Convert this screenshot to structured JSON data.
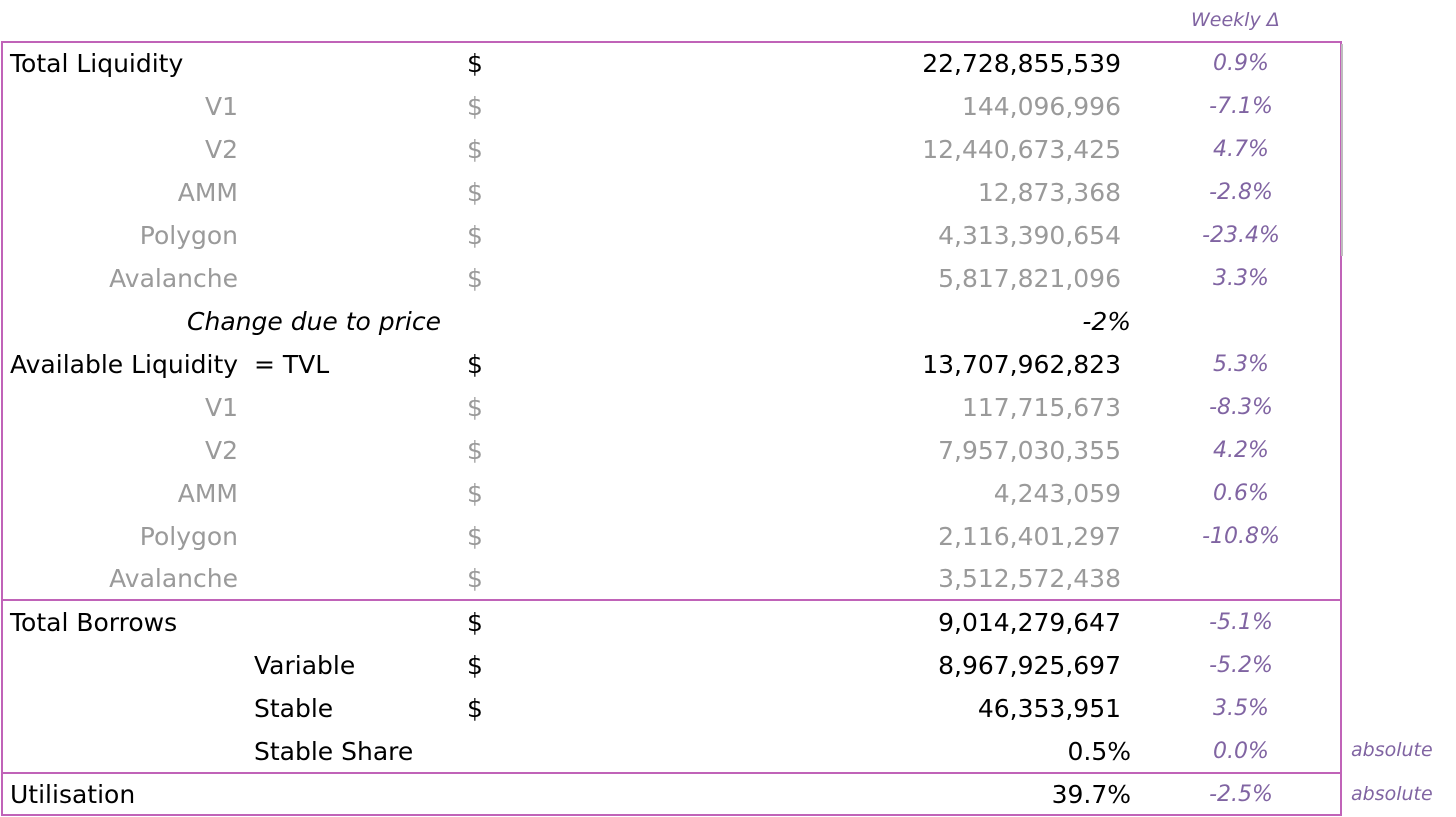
{
  "header": {
    "weekly_delta": "Weekly Δ"
  },
  "notes": {
    "absolute": "absolute"
  },
  "colors": {
    "border": "#c063b8",
    "delta": "#8064a2",
    "sub_text": "#9a9a9a"
  },
  "total_liquidity": {
    "label": "Total Liquidity",
    "currency": "$",
    "value": "22,728,855,539",
    "delta": "0.9%",
    "rows": [
      {
        "label": "V1",
        "currency": "$",
        "value": "144,096,996",
        "delta": "-7.1%"
      },
      {
        "label": "V2",
        "currency": "$",
        "value": "12,440,673,425",
        "delta": "4.7%"
      },
      {
        "label": "AMM",
        "currency": "$",
        "value": "12,873,368",
        "delta": "-2.8%"
      },
      {
        "label": "Polygon",
        "currency": "$",
        "value": "4,313,390,654",
        "delta": "-23.4%"
      },
      {
        "label": "Avalanche",
        "currency": "$",
        "value": "5,817,821,096",
        "delta": "3.3%"
      }
    ]
  },
  "price_change": {
    "label": "Change due to price",
    "value": "-2%"
  },
  "available_liquidity": {
    "label": "Available Liquidity  = TVL",
    "currency": "$",
    "value": "13,707,962,823",
    "delta": "5.3%",
    "rows": [
      {
        "label": "V1",
        "currency": "$",
        "value": "117,715,673",
        "delta": "-8.3%"
      },
      {
        "label": "V2",
        "currency": "$",
        "value": "7,957,030,355",
        "delta": "4.2%"
      },
      {
        "label": "AMM",
        "currency": "$",
        "value": "4,243,059",
        "delta": "0.6%"
      },
      {
        "label": "Polygon",
        "currency": "$",
        "value": "2,116,401,297",
        "delta": "-10.8%"
      },
      {
        "label": "Avalanche",
        "currency": "$",
        "value": "3,512,572,438",
        "delta": ""
      }
    ]
  },
  "total_borrows": {
    "label": "Total Borrows",
    "currency": "$",
    "value": "9,014,279,647",
    "delta": "-5.1%",
    "rows": [
      {
        "label": "Variable",
        "currency": "$",
        "value": "8,967,925,697",
        "delta": "-5.2%"
      },
      {
        "label": "Stable",
        "currency": "$",
        "value": "46,353,951",
        "delta": "3.5%"
      },
      {
        "label": "Stable Share",
        "currency": "",
        "value": "0.5%",
        "delta": "0.0%"
      }
    ]
  },
  "utilisation": {
    "label": "Utilisation",
    "value": "39.7%",
    "delta": "-2.5%"
  }
}
